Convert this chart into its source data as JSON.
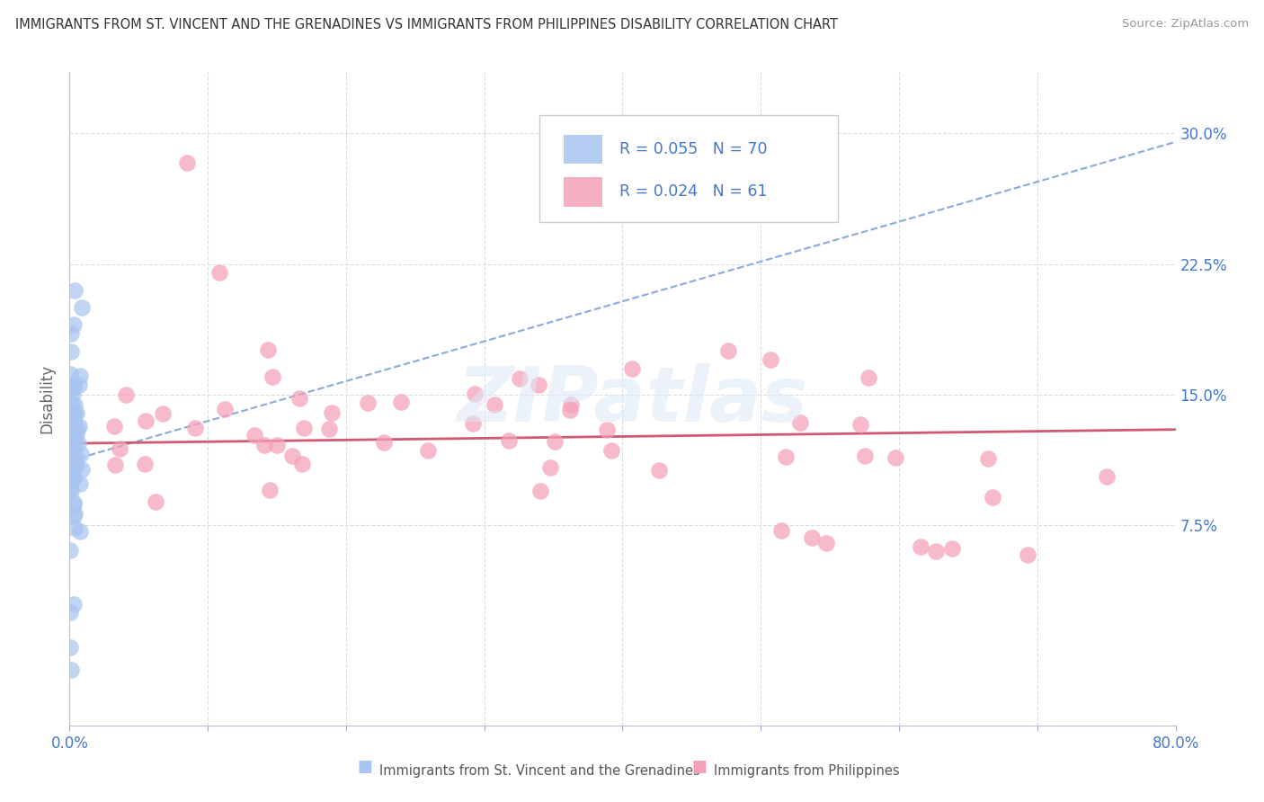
{
  "title": "IMMIGRANTS FROM ST. VINCENT AND THE GRENADINES VS IMMIGRANTS FROM PHILIPPINES DISABILITY CORRELATION CHART",
  "source": "Source: ZipAtlas.com",
  "ylabel": "Disability",
  "legend1_R": "0.055",
  "legend1_N": "70",
  "legend2_R": "0.024",
  "legend2_N": "61",
  "blue_color": "#a8c4f0",
  "pink_color": "#f5a0b8",
  "blue_trend_color": "#88aadd",
  "pink_trend_color": "#d05870",
  "grid_color": "#d8dde8",
  "tick_color": "#4477cc",
  "title_color": "#333333",
  "source_color": "#999999",
  "ylabel_color": "#666666",
  "label1": "Immigrants from St. Vincent and the Grenadines",
  "label2": "Immigrants from Philippines",
  "xmin": 0.0,
  "xmax": 0.8,
  "ymin": -0.04,
  "ymax": 0.335,
  "yticks": [
    0.075,
    0.15,
    0.225,
    0.3
  ],
  "ytick_labels": [
    "7.5%",
    "15.0%",
    "22.5%",
    "30.0%"
  ],
  "blue_trend_x": [
    0.0,
    0.8
  ],
  "blue_trend_y": [
    0.112,
    0.295
  ],
  "pink_trend_x": [
    0.0,
    0.8
  ],
  "pink_trend_y": [
    0.122,
    0.13
  ],
  "watermark_text": "ZIPatlas",
  "bottom_xticks": [
    0.0,
    0.1,
    0.2,
    0.3,
    0.4,
    0.5,
    0.6,
    0.7,
    0.8
  ]
}
